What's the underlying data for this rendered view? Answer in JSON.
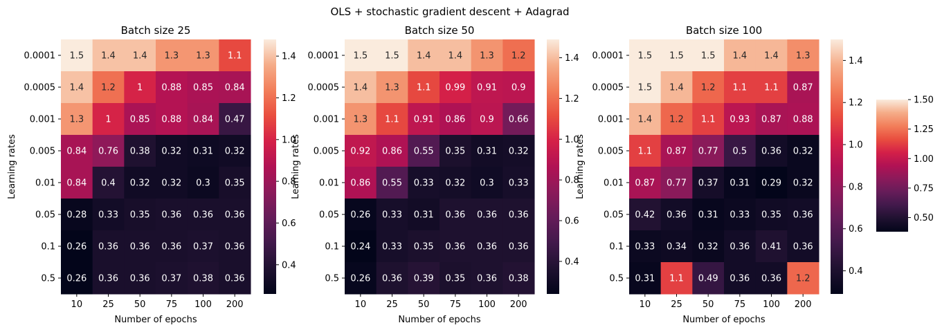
{
  "suptitle": "OLS + stochastic gradient descent + Adagrad",
  "colormap": "rocket",
  "chart_data": [
    {
      "type": "heatmap",
      "title": "Batch size 25",
      "xlabel": "Number of epochs",
      "ylabel": "Learning rates",
      "x_categories": [
        "10",
        "25",
        "50",
        "75",
        "100",
        "200"
      ],
      "y_categories": [
        "0.0001",
        "0.0005",
        "0.001",
        "0.005",
        "0.01",
        "0.05",
        "0.1",
        "0.5"
      ],
      "values": [
        [
          1.5,
          1.4,
          1.4,
          1.3,
          1.3,
          1.1
        ],
        [
          1.4,
          1.2,
          1,
          0.88,
          0.85,
          0.84
        ],
        [
          1.3,
          1,
          0.85,
          0.88,
          0.84,
          0.47
        ],
        [
          0.84,
          0.76,
          0.38,
          0.32,
          0.31,
          0.32
        ],
        [
          0.84,
          0.4,
          0.32,
          0.32,
          0.3,
          0.35
        ],
        [
          0.28,
          0.33,
          0.35,
          0.36,
          0.36,
          0.36
        ],
        [
          0.26,
          0.36,
          0.36,
          0.36,
          0.37,
          0.36
        ],
        [
          0.26,
          0.36,
          0.36,
          0.37,
          0.38,
          0.36
        ]
      ],
      "colorbar": {
        "range": [
          0.26,
          1.48
        ],
        "ticks": [
          "0.4",
          "0.6",
          "0.8",
          "1.0",
          "1.2",
          "1.4"
        ]
      }
    },
    {
      "type": "heatmap",
      "title": "Batch size 50",
      "xlabel": "Number of epochs",
      "ylabel": "Learning rates",
      "x_categories": [
        "10",
        "25",
        "50",
        "75",
        "100",
        "200"
      ],
      "y_categories": [
        "0.0001",
        "0.0005",
        "0.001",
        "0.005",
        "0.01",
        "0.05",
        "0.1",
        "0.5"
      ],
      "values": [
        [
          1.5,
          1.5,
          1.4,
          1.4,
          1.3,
          1.2
        ],
        [
          1.4,
          1.3,
          1.1,
          0.99,
          0.91,
          0.9
        ],
        [
          1.3,
          1.1,
          0.91,
          0.86,
          0.9,
          0.66
        ],
        [
          0.92,
          0.86,
          0.55,
          0.35,
          0.31,
          0.32
        ],
        [
          0.86,
          0.55,
          0.33,
          0.32,
          0.3,
          0.33
        ],
        [
          0.26,
          0.33,
          0.31,
          0.36,
          0.36,
          0.36
        ],
        [
          0.24,
          0.33,
          0.35,
          0.36,
          0.36,
          0.36
        ],
        [
          0.26,
          0.36,
          0.39,
          0.35,
          0.36,
          0.38
        ]
      ],
      "colorbar": {
        "range": [
          0.24,
          1.49
        ],
        "ticks": [
          "0.4",
          "0.6",
          "0.8",
          "1.0",
          "1.2",
          "1.4"
        ]
      }
    },
    {
      "type": "heatmap",
      "title": "Batch size 100",
      "xlabel": "Number of epochs",
      "ylabel": "Learning rates",
      "x_categories": [
        "10",
        "25",
        "50",
        "75",
        "100",
        "200"
      ],
      "y_categories": [
        "0.0001",
        "0.0005",
        "0.001",
        "0.005",
        "0.01",
        "0.05",
        "0.1",
        "0.5"
      ],
      "values": [
        [
          1.5,
          1.5,
          1.5,
          1.4,
          1.4,
          1.3
        ],
        [
          1.5,
          1.4,
          1.2,
          1.1,
          1.1,
          0.87
        ],
        [
          1.4,
          1.2,
          1.1,
          0.93,
          0.87,
          0.88
        ],
        [
          1.1,
          0.87,
          0.77,
          0.5,
          0.36,
          0.32
        ],
        [
          0.87,
          0.77,
          0.37,
          0.31,
          0.29,
          0.32
        ],
        [
          0.42,
          0.36,
          0.31,
          0.33,
          0.35,
          0.36
        ],
        [
          0.33,
          0.34,
          0.32,
          0.36,
          0.41,
          0.36
        ],
        [
          0.31,
          1.1,
          0.49,
          0.36,
          0.36,
          1.2
        ]
      ],
      "colorbar": {
        "range": [
          0.29,
          1.5
        ],
        "ticks": [
          "0.4",
          "0.6",
          "0.8",
          "1.0",
          "1.2",
          "1.4"
        ]
      }
    }
  ],
  "extra_colorbar": {
    "range": [
      0.38,
      1.5
    ],
    "ticks": [
      "0.50",
      "0.75",
      "1.00",
      "1.25",
      "1.50"
    ]
  }
}
